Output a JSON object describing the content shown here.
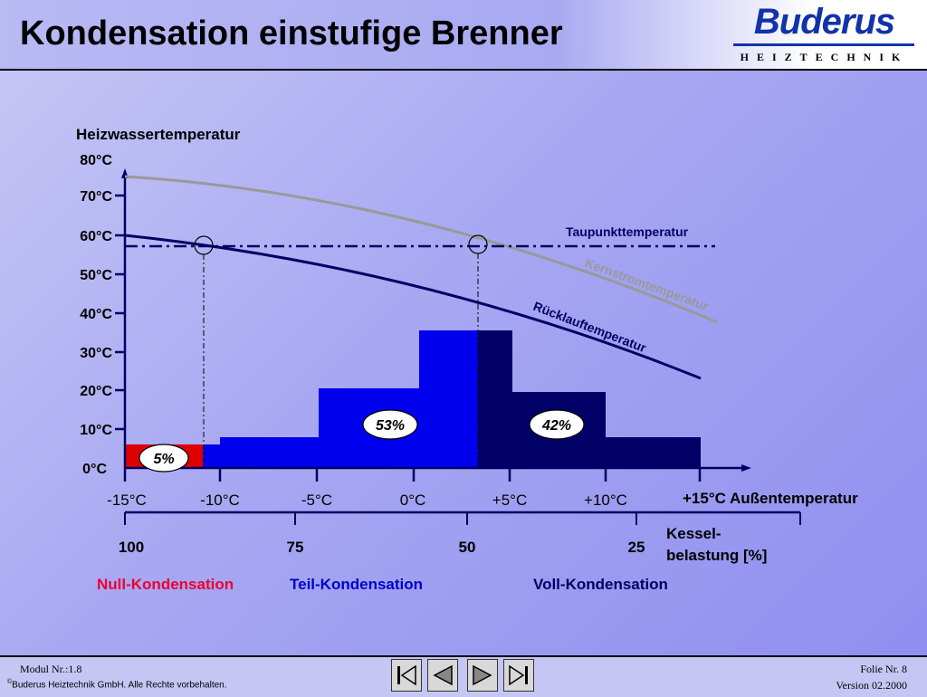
{
  "header": {
    "title": "Kondensation einstufige Brenner",
    "brand_name": "Buderus",
    "brand_sub": "HEIZTECHNIK"
  },
  "diagram": {
    "y_axis_title": "Heizwassertemperatur",
    "y_ticks": [
      "80°C",
      "70°C",
      "60°C",
      "50°C",
      "40°C",
      "30°C",
      "20°C",
      "10°C",
      "0°C"
    ],
    "x_ticks": [
      "-15°C",
      "-10°C",
      "-5°C",
      "0°C",
      "+5°C",
      "+10°C"
    ],
    "x_axis_title": "+15°C Außentemperatur",
    "load_ticks": [
      "100",
      "75",
      "50",
      "25"
    ],
    "load_title_line1": "Kessel-",
    "load_title_line2": "belastung [%]",
    "curve_labels": {
      "taupunkt": "Taupunkttemperatur",
      "kernstrom": "Kernstromtemperatur",
      "ruecklauf": "Rücklauftemperatur"
    },
    "percent_labels": {
      "null": "5%",
      "teil": "53%",
      "voll": "42%"
    },
    "zone_labels": {
      "null": "Null-Kondensation",
      "teil": "Teil-Kondensation",
      "voll": "Voll-Kondensation"
    },
    "colors": {
      "null": "#dd0000",
      "teil": "#0000ee",
      "voll": "#000066",
      "kernstrom_curve": "#999999",
      "ruecklauf_curve": "#000066",
      "taupunkt_line": "#000066",
      "zone_null_text": "#ee0033",
      "zone_teil_text": "#0000cc",
      "zone_voll_text": "#000066"
    }
  },
  "footer": {
    "modul": "Modul Nr.:1.8",
    "copyright_symbol": "©",
    "copyright": "Buderus Heiztechnik GmbH. Alle Rechte vorbehalten.",
    "folie": "Folie Nr. 8",
    "version": "Version 02.2000",
    "nav_icons": [
      "first-page-icon",
      "previous-page-icon",
      "next-page-icon",
      "last-page-icon"
    ]
  }
}
